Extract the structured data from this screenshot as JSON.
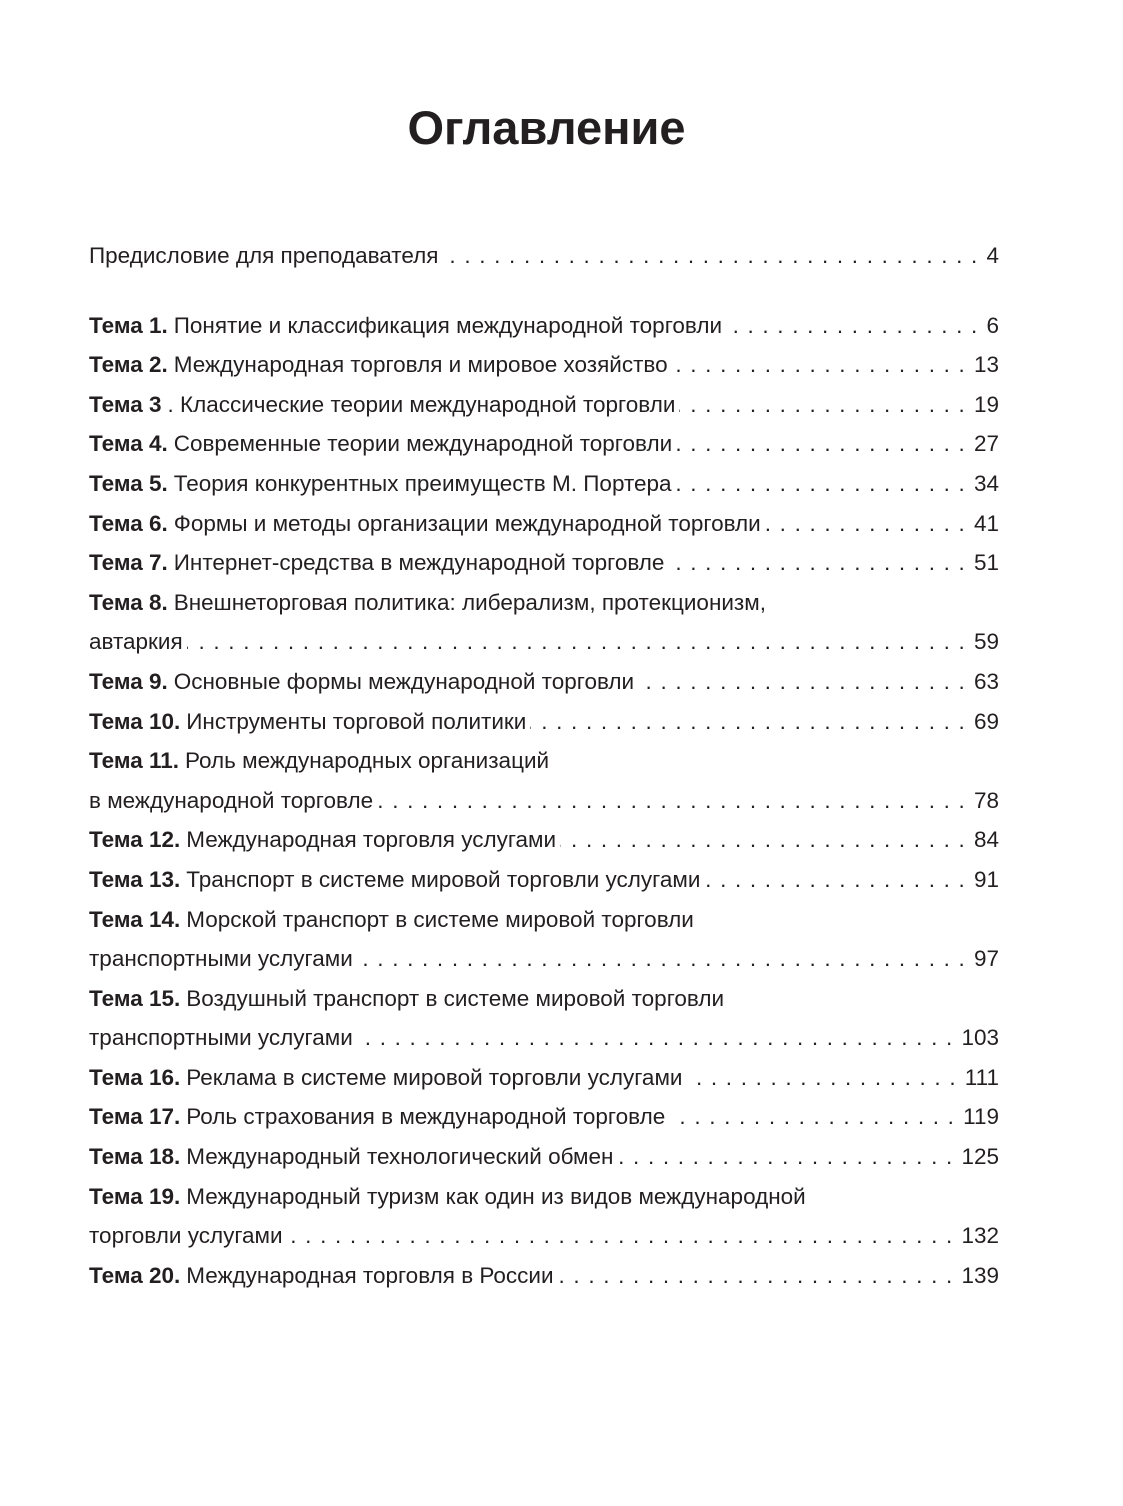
{
  "title": "Оглавление",
  "preface": {
    "title": "Предисловие для преподавателя",
    "page": "4"
  },
  "entries": [
    {
      "label": "Тема 1.",
      "title": "Понятие и классификация международной торговли",
      "page": "6"
    },
    {
      "label": "Тема 2.",
      "title": "Международная торговля и мировое хозяйство",
      "page": "13"
    },
    {
      "label": "Тема 3",
      "title": ". Классические теории международной торговли",
      "page": "19"
    },
    {
      "label": "Тема 4.",
      "title": "Современные теории международной торговли",
      "page": "27"
    },
    {
      "label": "Тема 5.",
      "title": "Теория конкурентных преимуществ М. Портера",
      "page": "34"
    },
    {
      "label": "Тема 6.",
      "title": "Формы и методы организации международной торговли",
      "page": "41"
    },
    {
      "label": "Тема 7.",
      "title": "Интернет-средства в международной торговле",
      "page": "51"
    },
    {
      "label": "Тема 8.",
      "title": "Внешнеторговая политика: либерализм, протекционизм,",
      "cont": "автаркия",
      "page": "59"
    },
    {
      "label": "Тема 9.",
      "title": "Основные формы международной торговли",
      "page": "63"
    },
    {
      "label": "Тема 10.",
      "title": "Инструменты торговой политики",
      "page": "69"
    },
    {
      "label": "Тема 11.",
      "title": "Роль международных организаций",
      "cont": "в международной торговле",
      "page": "78"
    },
    {
      "label": "Тема 12.",
      "title": "Международная торговля услугами",
      "page": "84"
    },
    {
      "label": "Тема 13.",
      "title": "Транспорт в системе мировой торговли услугами",
      "page": "91"
    },
    {
      "label": "Тема 14.",
      "title": "Морской транспорт в системе мировой торговли",
      "cont": "транспортными услугами",
      "page": "97"
    },
    {
      "label": "Тема 15.",
      "title": "Воздушный транспорт в системе мировой торговли",
      "cont": "транспортными услугами",
      "page": "103"
    },
    {
      "label": "Тема 16.",
      "title": "Реклама в системе мировой торговли услугами",
      "page": "111"
    },
    {
      "label": "Тема 17.",
      "title": "Роль страхования в международной торговле",
      "page": "119"
    },
    {
      "label": "Тема 18.",
      "title": "Международный технологический обмен",
      "page": "125"
    },
    {
      "label": "Тема 19.",
      "title": "Международный туризм как один из видов международной",
      "cont": "торговли услугами",
      "page": "132"
    },
    {
      "label": "Тема 20.",
      "title": "Международная торговля в России",
      "page": "139"
    }
  ]
}
